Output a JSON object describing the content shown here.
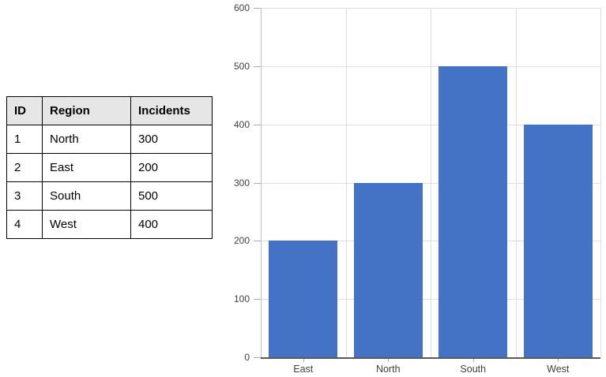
{
  "table": {
    "columns": [
      "ID",
      "Region",
      "Incidents"
    ],
    "rows": [
      [
        "1",
        "North",
        "300"
      ],
      [
        "2",
        "East",
        "200"
      ],
      [
        "3",
        "South",
        "500"
      ],
      [
        "4",
        "West",
        "400"
      ]
    ]
  },
  "chart_data": {
    "type": "bar",
    "categories": [
      "East",
      "North",
      "South",
      "West"
    ],
    "values": [
      200,
      300,
      500,
      400
    ],
    "title": "",
    "xlabel": "",
    "ylabel": "",
    "ylim": [
      0,
      600
    ],
    "yticks": [
      0,
      100,
      200,
      300,
      400,
      500,
      600
    ],
    "grid": true,
    "legend": "none",
    "bar_color": "#4472C4",
    "gridline_color": "#DEDEDE",
    "y_axis_color": "#BFBFBF",
    "tick_color": "#ABABAB",
    "x_axis_line_color": "#595959",
    "label_color": "#404040"
  },
  "colors": {
    "background": "#FFFFFF",
    "table_header_bg": "#E7E6E6",
    "table_border": "#000000",
    "bar": "#4472C4"
  }
}
